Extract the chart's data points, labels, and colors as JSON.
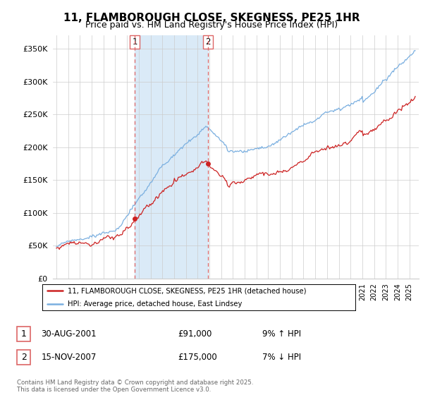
{
  "title": "11, FLAMBOROUGH CLOSE, SKEGNESS, PE25 1HR",
  "subtitle": "Price paid vs. HM Land Registry's House Price Index (HPI)",
  "ylim": [
    0,
    370000
  ],
  "yticks": [
    0,
    50000,
    100000,
    150000,
    200000,
    250000,
    300000,
    350000
  ],
  "ytick_labels": [
    "£0",
    "£50K",
    "£100K",
    "£150K",
    "£200K",
    "£250K",
    "£300K",
    "£350K"
  ],
  "hpi_color": "#7aafe0",
  "price_color": "#cc2222",
  "sale1_year": 2001.66,
  "sale1_price": 91000,
  "sale2_year": 2007.88,
  "sale2_price": 175000,
  "legend_line1": "11, FLAMBOROUGH CLOSE, SKEGNESS, PE25 1HR (detached house)",
  "legend_line2": "HPI: Average price, detached house, East Lindsey",
  "annotation1_date": "30-AUG-2001",
  "annotation1_price": "£91,000",
  "annotation1_hpi": "9% ↑ HPI",
  "annotation2_date": "15-NOV-2007",
  "annotation2_price": "£175,000",
  "annotation2_hpi": "7% ↓ HPI",
  "footer": "Contains HM Land Registry data © Crown copyright and database right 2025.\nThis data is licensed under the Open Government Licence v3.0.",
  "shaded_color": "#daeaf7",
  "vline_color": "#dd6666",
  "title_fontsize": 11,
  "subtitle_fontsize": 9,
  "background_color": "#ffffff"
}
